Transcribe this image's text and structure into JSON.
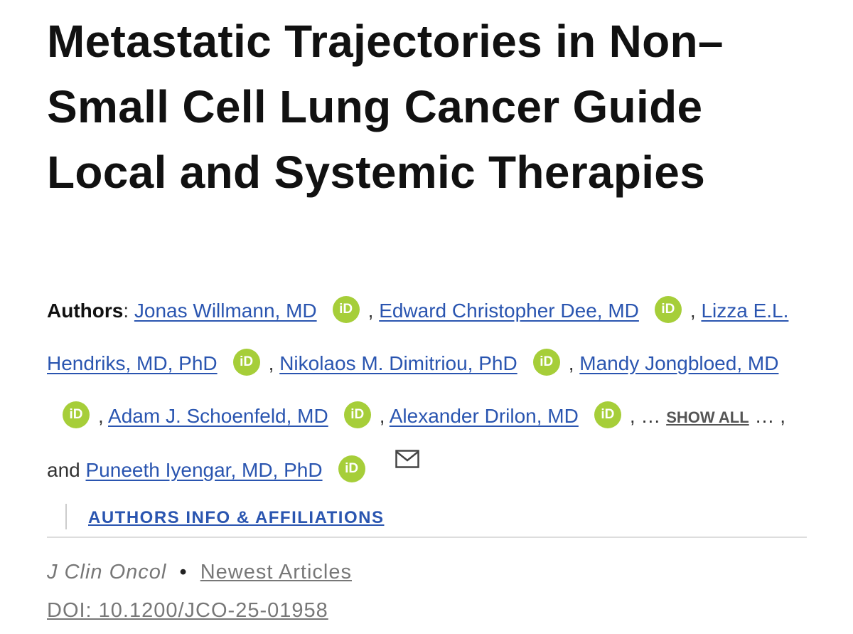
{
  "header": {
    "title": "Metastatic Trajectories in Non–Small Cell Lung Cancer Guide Local and Systemic Therapies"
  },
  "authors": {
    "label": "Authors",
    "colon": ":",
    "separator": ",",
    "ellipsis": "…",
    "show_all": "SHOW ALL",
    "and": "and",
    "orcid": "iD",
    "before_show_all": [
      "Jonas Willmann, MD",
      "Edward Christopher Dee, MD",
      "Lizza E.L. Hendriks, MD, PhD",
      "Nikolaos M. Dimitriou, PhD",
      "Mandy Jongbloed, MD",
      "Adam J. Schoenfeld, MD",
      "Alexander Drilon, MD"
    ],
    "last": "Puneeth Iyengar, MD, PhD",
    "info": "AUTHORS INFO & AFFILIATIONS"
  },
  "citation": {
    "journal": "J Clin Oncol",
    "bullet": "•",
    "section": "Newest Articles",
    "doi": "DOI: 10.1200/JCO-25-01958"
  }
}
